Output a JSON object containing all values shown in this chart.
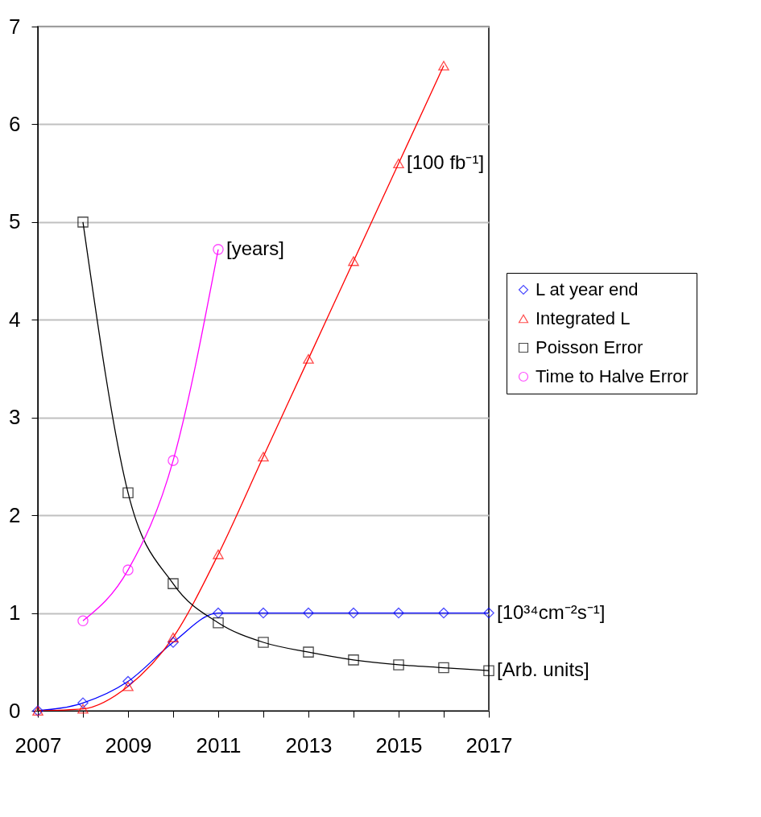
{
  "chart_data": {
    "type": "line",
    "xlim": [
      2007,
      2017
    ],
    "xticks": [
      2007,
      {
        "value": 2008,
        "label": null
      },
      2009,
      {
        "value": 2010,
        "label": null
      },
      2011,
      {
        "value": 2012,
        "label": null
      },
      2013,
      {
        "value": 2014,
        "label": null
      },
      2015,
      {
        "value": 2016,
        "label": null
      },
      2017
    ],
    "ylim": [
      0,
      7
    ],
    "yticks": [
      0,
      1,
      2,
      3,
      4,
      5,
      6,
      7
    ],
    "grid": "y",
    "legend": "right",
    "series": [
      {
        "name": "L at year end",
        "color": "#0000ff",
        "marker": "diamond",
        "x": [
          2007,
          2008,
          2009,
          2010,
          2011,
          2012,
          2013,
          2014,
          2015,
          2016,
          2017
        ],
        "values": [
          0,
          0.08,
          0.3,
          0.7,
          1,
          1,
          1,
          1,
          1,
          1,
          1
        ]
      },
      {
        "name": "Integrated L",
        "color": "#ff0000",
        "marker": "triangle",
        "x": [
          2007,
          2008,
          2009,
          2010,
          2011,
          2012,
          2013,
          2014,
          2015,
          2016
        ],
        "values": [
          0,
          0.02,
          0.25,
          0.75,
          1.6,
          2.6,
          3.6,
          4.6,
          5.6,
          6.6
        ]
      },
      {
        "name": "Poisson Error",
        "color": "#000000",
        "marker": "square",
        "x": [
          2008,
          2009,
          2010,
          2011,
          2012,
          2013,
          2014,
          2015,
          2016,
          2017
        ],
        "values": [
          5.0,
          2.23,
          1.3,
          0.9,
          0.7,
          0.6,
          0.52,
          0.47,
          0.44,
          0.41
        ]
      },
      {
        "name": "Time to Halve Error",
        "color": "#ff00ff",
        "marker": "circle",
        "x": [
          2008,
          2009,
          2010,
          2011
        ],
        "values": [
          0.92,
          1.44,
          2.56,
          4.72
        ]
      }
    ],
    "annotations": [
      {
        "text": "[years]",
        "x": 2011,
        "y": 4.72
      },
      {
        "text": "[100 fb⁻¹]",
        "x": 2015,
        "y": 5.6
      },
      {
        "text": "[10³⁴cm⁻²s⁻¹]",
        "x": 2017,
        "y": 1
      },
      {
        "text": "[Arb. units]",
        "x": 2017,
        "y": 0.41
      }
    ]
  }
}
